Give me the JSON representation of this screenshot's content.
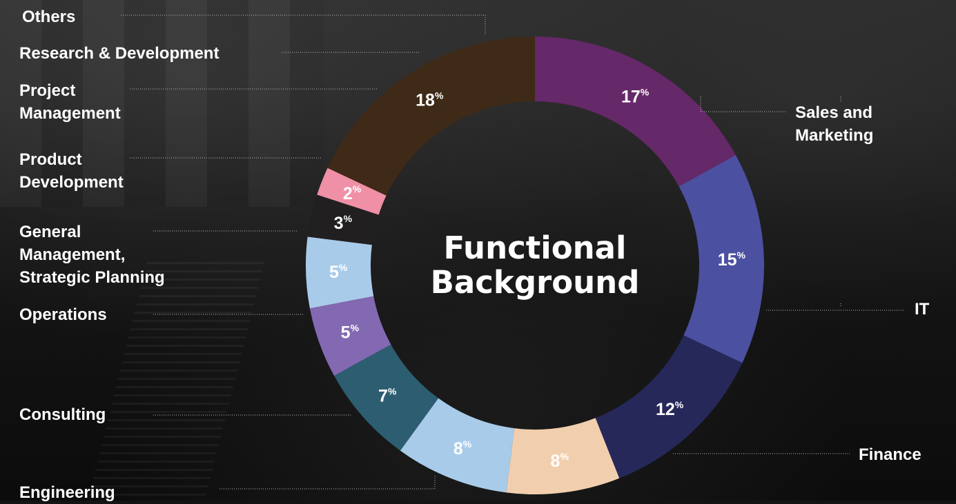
{
  "chart_data": {
    "type": "pie",
    "donut": true,
    "title": "Functional\nBackground",
    "unit": "%",
    "slices": [
      {
        "label": "Sales and Marketing",
        "value": 17,
        "color": "#652868"
      },
      {
        "label": "IT",
        "value": 15,
        "color": "#4b50a1"
      },
      {
        "label": "Finance",
        "value": 12,
        "color": "#26285a"
      },
      {
        "label": "Engineering",
        "value": 8,
        "color": "#f1cfae"
      },
      {
        "label": "Consulting",
        "value": 8,
        "color": "#a9cbea"
      },
      {
        "label": "Operations",
        "value": 7,
        "color": "#2c5d70"
      },
      {
        "label": "General Management, Strategic Planning",
        "value": 5,
        "color": "#8368b2"
      },
      {
        "label": "Product Development",
        "value": 5,
        "color": "#a9cbea"
      },
      {
        "label": "Project Management",
        "value": 3,
        "color": "#221f21"
      },
      {
        "label": "Research & Development",
        "value": 2,
        "color": "#f090a7"
      },
      {
        "label": "Others",
        "value": 18,
        "color": "#3f2a18"
      }
    ]
  },
  "labels": {
    "sales": "Sales and\nMarketing",
    "it": "IT",
    "finance": "Finance",
    "engineering": "Engineering",
    "consulting": "Consulting",
    "operations": "Operations",
    "general": "General\nManagement,\nStrategic Planning",
    "product": "Product\nDevelopment",
    "project": "Project\nManagement",
    "research": "Research & Development",
    "others": "Others"
  }
}
